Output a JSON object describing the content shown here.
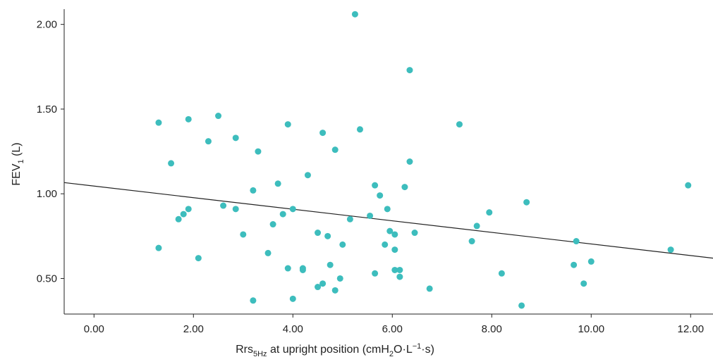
{
  "chart_data": {
    "type": "scatter",
    "xlabel": {
      "main": "Rrs",
      "sub": "5Hz",
      "rest": " at upright position (cmH",
      "sub2": "2",
      "rest2": "O·L",
      "sup": "−1",
      "rest3": "·s)"
    },
    "ylabel": {
      "main": "FEV",
      "sub": "1",
      "rest": " (L)"
    },
    "xlim": [
      -0.6,
      12.45
    ],
    "ylim": [
      0.29,
      2.09
    ],
    "xticks": [
      0,
      2,
      4,
      6,
      8,
      10,
      12
    ],
    "xtick_labels": [
      "0.00",
      "2.00",
      "4.00",
      "6.00",
      "8.00",
      "10.00",
      "12.00"
    ],
    "yticks": [
      0.5,
      1.0,
      1.5,
      2.0
    ],
    "ytick_labels": [
      "0.50",
      "1.00",
      "1.50",
      "2.00"
    ],
    "point_color": "#3dbdbd",
    "line_color": "#222222",
    "regression_line": {
      "x": [
        -0.6,
        12.45
      ],
      "y": [
        1.066,
        0.62
      ]
    },
    "points": [
      {
        "x": 1.3,
        "y": 1.42
      },
      {
        "x": 1.3,
        "y": 0.68
      },
      {
        "x": 1.55,
        "y": 1.18
      },
      {
        "x": 1.7,
        "y": 0.85
      },
      {
        "x": 1.8,
        "y": 0.88
      },
      {
        "x": 1.9,
        "y": 1.44
      },
      {
        "x": 1.9,
        "y": 0.91
      },
      {
        "x": 2.1,
        "y": 0.62
      },
      {
        "x": 2.3,
        "y": 1.31
      },
      {
        "x": 2.5,
        "y": 1.46
      },
      {
        "x": 2.6,
        "y": 0.93
      },
      {
        "x": 2.85,
        "y": 1.33
      },
      {
        "x": 2.85,
        "y": 0.91
      },
      {
        "x": 3.0,
        "y": 0.76
      },
      {
        "x": 3.2,
        "y": 1.02
      },
      {
        "x": 3.2,
        "y": 0.37
      },
      {
        "x": 3.3,
        "y": 1.25
      },
      {
        "x": 3.5,
        "y": 0.65
      },
      {
        "x": 3.6,
        "y": 0.82
      },
      {
        "x": 3.7,
        "y": 1.06
      },
      {
        "x": 3.8,
        "y": 0.88
      },
      {
        "x": 3.9,
        "y": 1.41
      },
      {
        "x": 3.9,
        "y": 0.56
      },
      {
        "x": 4.0,
        "y": 0.91
      },
      {
        "x": 4.0,
        "y": 0.38
      },
      {
        "x": 4.2,
        "y": 0.56
      },
      {
        "x": 4.2,
        "y": 0.55
      },
      {
        "x": 4.3,
        "y": 1.11
      },
      {
        "x": 4.5,
        "y": 0.77
      },
      {
        "x": 4.5,
        "y": 0.45
      },
      {
        "x": 4.6,
        "y": 1.36
      },
      {
        "x": 4.6,
        "y": 0.47
      },
      {
        "x": 4.7,
        "y": 0.75
      },
      {
        "x": 4.75,
        "y": 0.58
      },
      {
        "x": 4.85,
        "y": 1.26
      },
      {
        "x": 4.85,
        "y": 0.43
      },
      {
        "x": 4.95,
        "y": 0.5
      },
      {
        "x": 5.0,
        "y": 0.7
      },
      {
        "x": 5.15,
        "y": 0.85
      },
      {
        "x": 5.25,
        "y": 2.06
      },
      {
        "x": 5.35,
        "y": 1.38
      },
      {
        "x": 5.55,
        "y": 0.87
      },
      {
        "x": 5.65,
        "y": 1.05
      },
      {
        "x": 5.65,
        "y": 0.53
      },
      {
        "x": 5.75,
        "y": 0.99
      },
      {
        "x": 5.85,
        "y": 0.7
      },
      {
        "x": 5.9,
        "y": 0.91
      },
      {
        "x": 5.95,
        "y": 0.78
      },
      {
        "x": 6.05,
        "y": 0.76
      },
      {
        "x": 6.05,
        "y": 0.67
      },
      {
        "x": 6.05,
        "y": 0.55
      },
      {
        "x": 6.15,
        "y": 0.55
      },
      {
        "x": 6.15,
        "y": 0.51
      },
      {
        "x": 6.25,
        "y": 1.04
      },
      {
        "x": 6.35,
        "y": 1.73
      },
      {
        "x": 6.35,
        "y": 1.19
      },
      {
        "x": 6.45,
        "y": 0.77
      },
      {
        "x": 6.75,
        "y": 0.44
      },
      {
        "x": 7.35,
        "y": 1.41
      },
      {
        "x": 7.6,
        "y": 0.72
      },
      {
        "x": 7.7,
        "y": 0.81
      },
      {
        "x": 7.95,
        "y": 0.89
      },
      {
        "x": 8.2,
        "y": 0.53
      },
      {
        "x": 8.6,
        "y": 0.34
      },
      {
        "x": 8.7,
        "y": 0.95
      },
      {
        "x": 9.65,
        "y": 0.58
      },
      {
        "x": 9.7,
        "y": 0.72
      },
      {
        "x": 9.85,
        "y": 0.47
      },
      {
        "x": 10.0,
        "y": 0.6
      },
      {
        "x": 11.6,
        "y": 0.67
      },
      {
        "x": 11.95,
        "y": 1.05
      }
    ]
  }
}
